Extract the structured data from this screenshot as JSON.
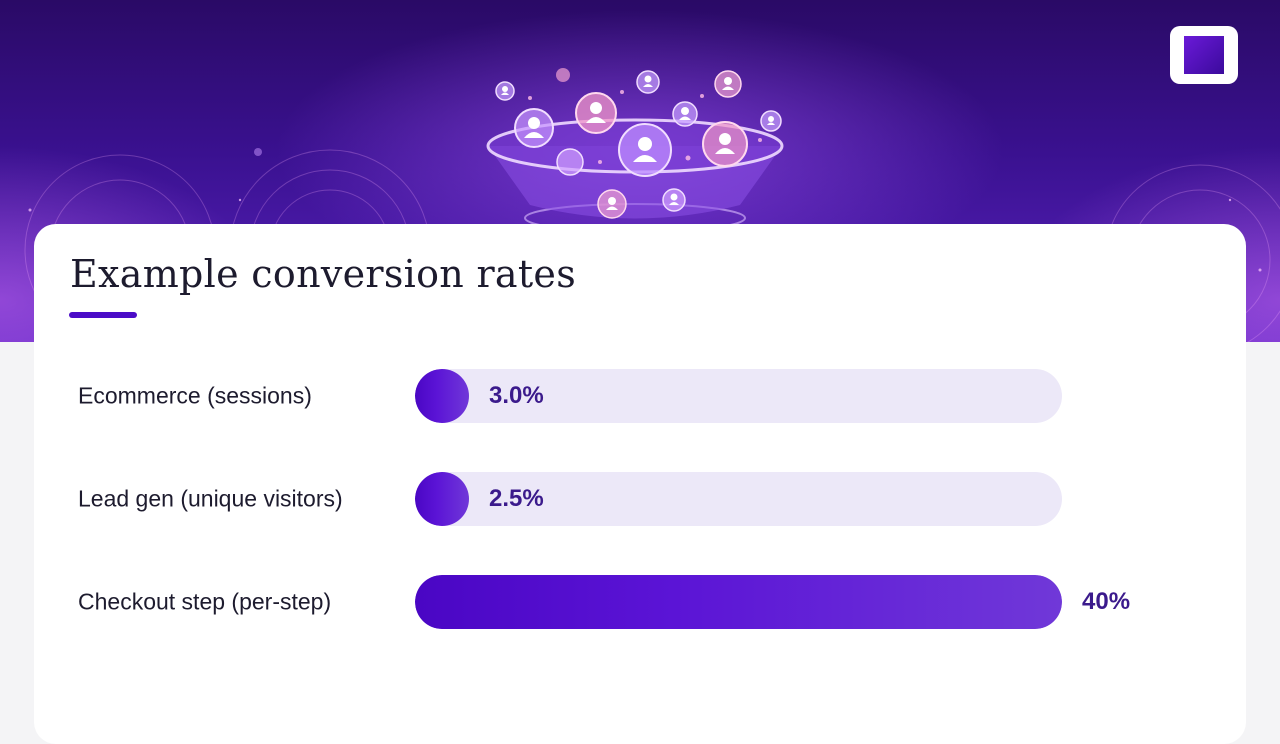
{
  "chart_data": {
    "type": "bar",
    "orientation": "horizontal",
    "title": "Example conversion rates",
    "xlabel": "",
    "ylabel": "",
    "xlim": [
      0,
      40
    ],
    "categories": [
      "Ecommerce (sessions)",
      "Lead gen (unique visitors)",
      "Checkout step (per-step)"
    ],
    "values": [
      3.0,
      2.5,
      40
    ],
    "value_labels": [
      "3.0%",
      "2.5%",
      "40%"
    ],
    "grid": false,
    "legend": "none"
  },
  "colors": {
    "accent": "#4b0cc7",
    "bar_fill": "#5b14d6",
    "track": "#ece8f8",
    "value_text": "#3b1a8c"
  },
  "icons": [
    "funnel-people-illustration",
    "brand-logo"
  ]
}
